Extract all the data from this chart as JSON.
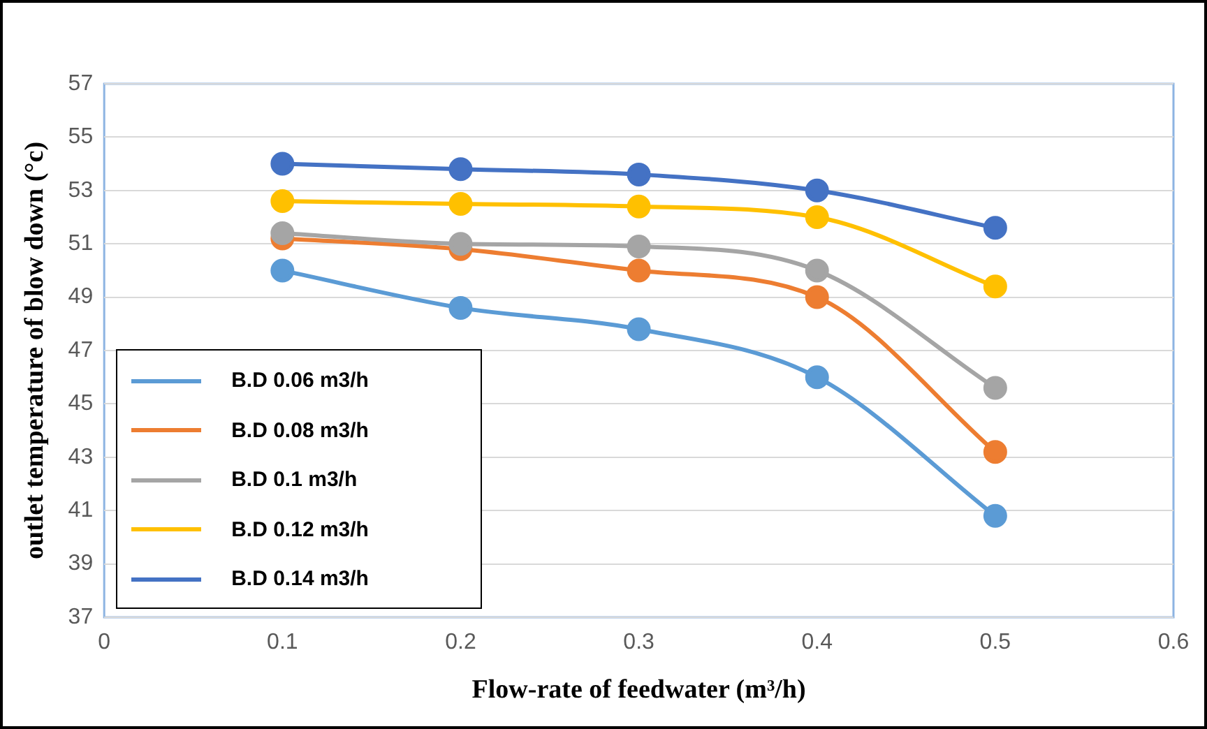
{
  "chart_data": {
    "type": "line",
    "xlabel": "Flow-rate of feedwater (m³/h)",
    "ylabel": "outlet temperature of blow down (°c)",
    "x": [
      0.1,
      0.2,
      0.3,
      0.4,
      0.5
    ],
    "series": [
      {
        "name": "B.D 0.06 m3/h",
        "color": "#5b9bd5",
        "values": [
          50.0,
          48.6,
          47.8,
          46.0,
          40.8
        ]
      },
      {
        "name": "B.D 0.08 m3/h",
        "color": "#ed7d31",
        "values": [
          51.2,
          50.8,
          50.0,
          49.0,
          43.2
        ]
      },
      {
        "name": "B.D 0.1 m3/h",
        "color": "#a5a5a5",
        "values": [
          51.4,
          51.0,
          50.9,
          50.0,
          45.6
        ]
      },
      {
        "name": "B.D 0.12 m3/h",
        "color": "#ffc000",
        "values": [
          52.6,
          52.5,
          52.4,
          52.0,
          49.4
        ]
      },
      {
        "name": "B.D 0.14 m3/h",
        "color": "#4472c4",
        "values": [
          54.0,
          53.8,
          53.6,
          53.0,
          51.6
        ]
      }
    ],
    "xlim": [
      0,
      0.6
    ],
    "xticks": [
      0,
      0.1,
      0.2,
      0.3,
      0.4,
      0.5,
      0.6
    ],
    "ylim": [
      37,
      57
    ],
    "yticks": [
      37,
      39,
      41,
      43,
      45,
      47,
      49,
      51,
      53,
      55,
      57
    ],
    "grid": "y",
    "legend": "bottom left",
    "marker": "circle",
    "line_style": "solid"
  }
}
